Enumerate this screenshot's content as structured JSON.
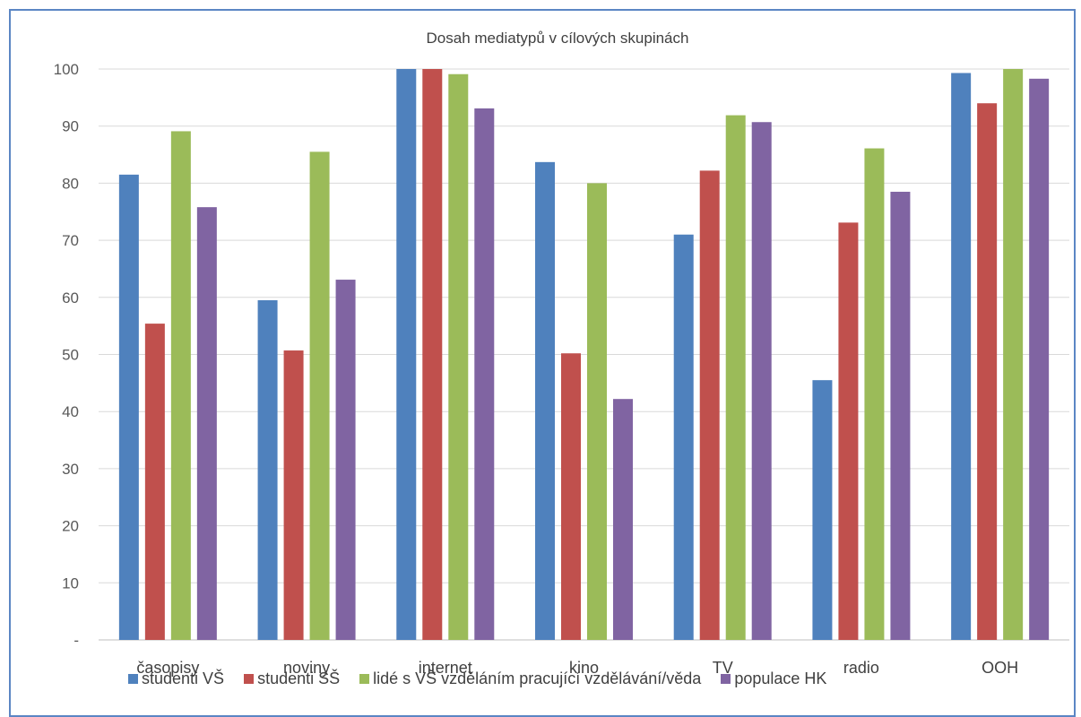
{
  "chart_data": {
    "type": "bar",
    "title": "Dosah mediatypů v cílových skupinách",
    "categories": [
      "časopisy",
      "noviny",
      "internet",
      "kino",
      "TV",
      "radio",
      "OOH"
    ],
    "series": [
      {
        "name": "studenti VŠ",
        "color": "#4f81bd",
        "values": [
          81.5,
          59.5,
          100,
          83.7,
          71,
          45.5,
          99.3
        ]
      },
      {
        "name": "studenti SŠ",
        "color": "#c0504d",
        "values": [
          55.4,
          50.7,
          100,
          50.2,
          82.2,
          73.1,
          94
        ]
      },
      {
        "name": "lidé s VŠ vzděláním pracující vzdělávání/věda",
        "color": "#9bbb59",
        "values": [
          89.1,
          85.5,
          99.1,
          80,
          91.9,
          86.1,
          100
        ]
      },
      {
        "name": "populace HK",
        "color": "#8064a2",
        "values": [
          75.8,
          63.1,
          93.1,
          42.2,
          90.7,
          78.5,
          98.3
        ]
      }
    ],
    "ylim": [
      0,
      100
    ],
    "yticks": [
      0,
      10,
      20,
      30,
      40,
      50,
      60,
      70,
      80,
      90,
      100
    ],
    "ytick_labels": [
      "-",
      "10",
      "20",
      "30",
      "40",
      "50",
      "60",
      "70",
      "80",
      "90",
      "100"
    ],
    "grid": true,
    "legend_position": "bottom"
  }
}
